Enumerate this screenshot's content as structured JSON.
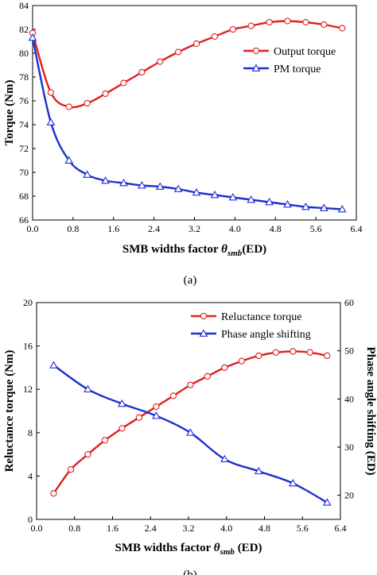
{
  "colors": {
    "output": "#e01f1f",
    "pm": "#1c2fd0",
    "axis": "#000000"
  },
  "chart_data": [
    {
      "type": "line",
      "panel": "(a)",
      "xlabel_main": "SMB widths factor ",
      "xlabel_sym": "θ",
      "xlabel_sub": "smb",
      "xlabel_unit": "(ED)",
      "ylabel": "Torque (Nm)",
      "xlim": [
        0,
        6.4
      ],
      "ylim": [
        66,
        84
      ],
      "xticks": [
        "0.0",
        "0.8",
        "1.6",
        "2.4",
        "3.2",
        "4.0",
        "4.8",
        "5.6",
        "6.4"
      ],
      "yticks": [
        "66",
        "68",
        "70",
        "72",
        "74",
        "76",
        "78",
        "80",
        "82",
        "84"
      ],
      "legend_position": "top-right",
      "series": [
        {
          "name": "Output torque",
          "marker": "circle",
          "color": "#e01f1f",
          "x": [
            0.0,
            0.36,
            0.72,
            1.08,
            1.44,
            1.8,
            2.16,
            2.52,
            2.88,
            3.24,
            3.6,
            3.96,
            4.32,
            4.68,
            5.04,
            5.4,
            5.76,
            6.12
          ],
          "y": [
            81.7,
            76.7,
            75.5,
            75.8,
            76.6,
            77.5,
            78.4,
            79.3,
            80.1,
            80.8,
            81.4,
            82.0,
            82.3,
            82.6,
            82.7,
            82.6,
            82.4,
            82.1
          ]
        },
        {
          "name": "PM torque",
          "marker": "triangle",
          "color": "#1c2fd0",
          "x": [
            0.0,
            0.36,
            0.72,
            1.08,
            1.44,
            1.8,
            2.16,
            2.52,
            2.88,
            3.24,
            3.6,
            3.96,
            4.32,
            4.68,
            5.04,
            5.4,
            5.76,
            6.12
          ],
          "y": [
            81.3,
            74.2,
            71.0,
            69.8,
            69.3,
            69.1,
            68.9,
            68.8,
            68.6,
            68.3,
            68.1,
            67.9,
            67.7,
            67.5,
            67.3,
            67.1,
            67.0,
            66.9
          ]
        }
      ]
    },
    {
      "type": "line",
      "panel": "(b)",
      "xlabel_main": "SMB widths factor ",
      "xlabel_sym": "θ",
      "xlabel_sub": "smb",
      "xlabel_unit": " (ED)",
      "ylabel": "Reluctance torque (Nm)",
      "ylabel_right": "Phase angle shifting (ED)",
      "xlim": [
        0,
        6.4
      ],
      "ylim": [
        0,
        20
      ],
      "ylim_right": [
        15,
        60
      ],
      "xticks": [
        "0.0",
        "0.8",
        "1.6",
        "2.4",
        "3.2",
        "4.0",
        "4.8",
        "5.6",
        "6.4"
      ],
      "yticks": [
        "0",
        "4",
        "8",
        "12",
        "16",
        "20"
      ],
      "yticks_right": [
        "20",
        "30",
        "40",
        "50",
        "60"
      ],
      "legend_position": "top-right",
      "series": [
        {
          "name": "Reluctance torque",
          "marker": "circle",
          "color": "#e01f1f",
          "axis": "left",
          "x": [
            0.36,
            0.72,
            1.08,
            1.44,
            1.8,
            2.16,
            2.52,
            2.88,
            3.24,
            3.6,
            3.96,
            4.32,
            4.68,
            5.04,
            5.4,
            5.76,
            6.12
          ],
          "y": [
            2.4,
            4.6,
            6.0,
            7.3,
            8.4,
            9.4,
            10.4,
            11.4,
            12.4,
            13.2,
            14.0,
            14.6,
            15.1,
            15.4,
            15.5,
            15.4,
            15.1
          ]
        },
        {
          "name": "Phase angle shifting",
          "marker": "triangle",
          "color": "#1c2fd0",
          "axis": "right",
          "x": [
            0.36,
            1.08,
            1.8,
            2.52,
            3.24,
            3.96,
            4.68,
            5.4,
            6.12
          ],
          "y": [
            47.0,
            42.0,
            39.0,
            36.5,
            33.0,
            27.5,
            25.0,
            22.5,
            18.5
          ]
        }
      ]
    }
  ]
}
